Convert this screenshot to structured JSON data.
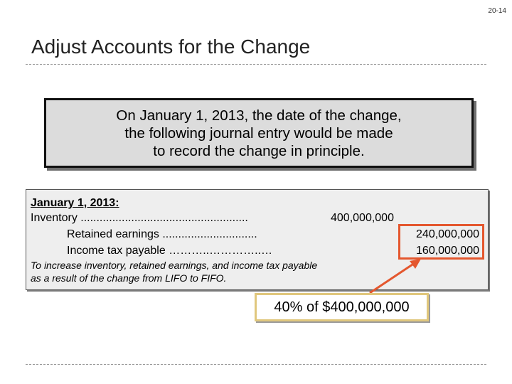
{
  "page_number": "20-14",
  "title": "Adjust Accounts for the Change",
  "callout": {
    "line1": "On January 1, 2013, the date of the change,",
    "line2": "the following journal entry would be made",
    "line3": "to record the change in principle."
  },
  "journal": {
    "date_label": "January 1, 2013:",
    "rows": [
      {
        "account": "Inventory .....................................................",
        "debit": "400,000,000",
        "credit": ""
      },
      {
        "account": "Retained earnings ..............................",
        "debit": "",
        "credit": "240,000,000"
      },
      {
        "account": "Income tax payable ………..…………..…",
        "debit": "",
        "credit": "160,000,000"
      }
    ],
    "note": "To increase inventory, retained earnings, and income tax payable as a result of the change from  LIFO to FIFO."
  },
  "annotation": "40% of $400,000,000",
  "colors": {
    "highlight": "#e4572e",
    "annotation_border": "#e0c77d",
    "callout_bg": "#dcdcdc",
    "journal_bg": "#eeeeee"
  }
}
